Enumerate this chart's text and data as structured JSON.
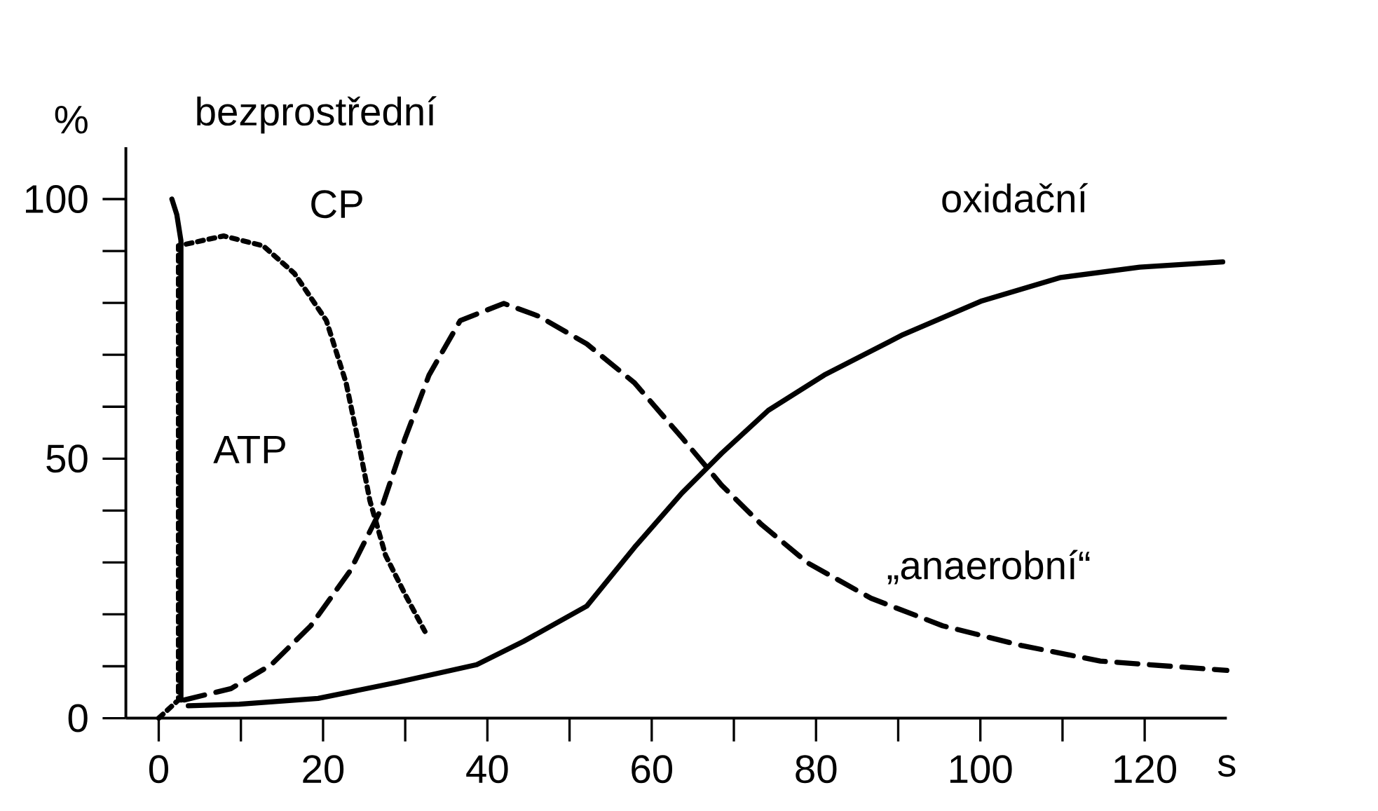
{
  "chart_data": {
    "type": "line",
    "xlabel": "s",
    "ylabel": "%",
    "annotations": [
      "bezprostřední"
    ],
    "xlim": [
      -4,
      130
    ],
    "ylim": [
      0,
      110
    ],
    "xticks": [
      0,
      20,
      40,
      60,
      80,
      100,
      120
    ],
    "yticks": [
      0,
      50,
      100
    ],
    "grid": false,
    "marker": "none",
    "series": [
      {
        "name": "ATP",
        "color": "#000000",
        "line_style": "solid",
        "x": [
          1.6,
          2.2,
          2.7,
          2.7
        ],
        "values": [
          100,
          97,
          92,
          3.5
        ]
      },
      {
        "name": "CP",
        "color": "#000000",
        "line_style": "dotted",
        "x": [
          0,
          2.4,
          2.4,
          7.9,
          12.7,
          16.5,
          20.4,
          22.8,
          24.2,
          25.7,
          27.6,
          30,
          32.4
        ],
        "values": [
          0,
          3.5,
          91,
          92.9,
          91,
          85.7,
          76.6,
          64.6,
          54,
          41.9,
          31.4,
          23.8,
          16.7
        ]
      },
      {
        "name": "„anaerobní“",
        "color": "#000000",
        "line_style": "dashed",
        "x": [
          3.1,
          8.8,
          13.7,
          18.5,
          23.3,
          27.1,
          30,
          32.9,
          36.7,
          42,
          46.3,
          52.1,
          57.9,
          63.7,
          68.5,
          73.3,
          79,
          86.7,
          95.4,
          105,
          114.6,
          130
        ],
        "values": [
          3.5,
          5.7,
          10.3,
          17.8,
          28.4,
          40.4,
          54,
          66.1,
          76.6,
          79.9,
          77.4,
          72.1,
          64.6,
          54,
          44.9,
          37.4,
          29.9,
          23.1,
          17.8,
          14,
          11,
          9.2
        ]
      },
      {
        "name": "oxidační",
        "color": "#000000",
        "line_style": "solid",
        "x": [
          3.6,
          9.8,
          19.4,
          29,
          38.7,
          44.4,
          52.1,
          57.9,
          63.7,
          68.5,
          74.2,
          81,
          90.6,
          100.2,
          109.8,
          119.4,
          129.5
        ],
        "values": [
          2.4,
          2.7,
          3.8,
          6.9,
          10.3,
          14.8,
          21.6,
          32.9,
          43.4,
          51,
          59.3,
          66.1,
          73.9,
          80.4,
          84.9,
          86.9,
          87.9
        ]
      }
    ]
  }
}
